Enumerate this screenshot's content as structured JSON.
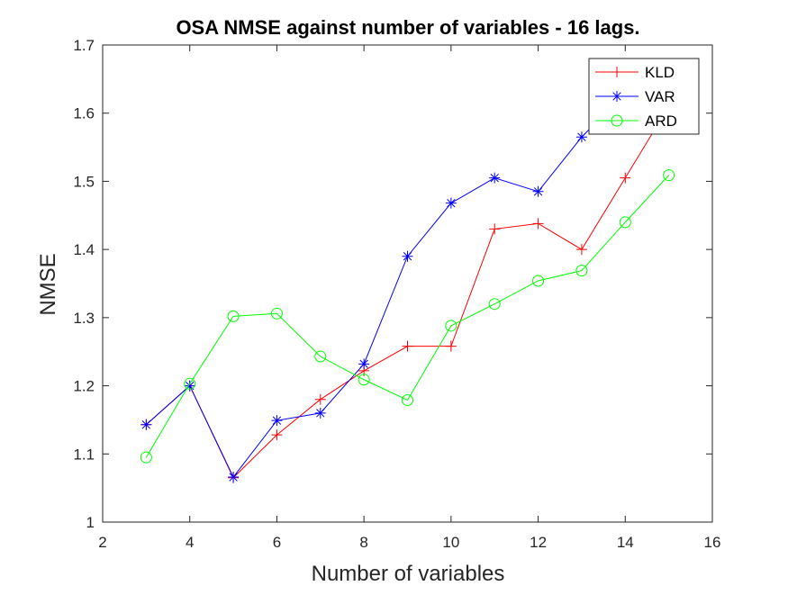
{
  "chart_data": {
    "type": "line",
    "title": "OSA NMSE against number of variables - 16 lags.",
    "xlabel": "Number of variables",
    "ylabel": "NMSE",
    "xlim": [
      2,
      16
    ],
    "ylim": [
      1,
      1.7
    ],
    "xticks": [
      2,
      4,
      6,
      8,
      10,
      12,
      14,
      16
    ],
    "yticks": [
      1,
      1.1,
      1.2,
      1.3,
      1.4,
      1.5,
      1.6,
      1.7
    ],
    "xtick_labels": [
      "2",
      "4",
      "6",
      "8",
      "10",
      "12",
      "14",
      "16"
    ],
    "ytick_labels": [
      "1",
      "1.1",
      "1.2",
      "1.3",
      "1.4",
      "1.5",
      "1.6",
      "1.7"
    ],
    "grid": false,
    "legend_position": "top-right",
    "series": [
      {
        "name": "KLD",
        "color": "#ff0000",
        "marker": "plus",
        "x": [
          3,
          4,
          5,
          6,
          7,
          8,
          9,
          10,
          11,
          12,
          13,
          14,
          15
        ],
        "y": [
          1.143,
          1.2,
          1.065,
          1.128,
          1.18,
          1.222,
          1.258,
          1.258,
          1.43,
          1.438,
          1.4,
          1.505,
          1.61
        ]
      },
      {
        "name": "VAR",
        "color": "#0000ff",
        "marker": "asterisk",
        "x": [
          3,
          4,
          5,
          6,
          7,
          8,
          9,
          10,
          11,
          12,
          13,
          14,
          15
        ],
        "y": [
          1.143,
          1.2,
          1.066,
          1.149,
          1.16,
          1.232,
          1.39,
          1.468,
          1.505,
          1.485,
          1.565,
          1.63,
          1.66
        ]
      },
      {
        "name": "ARD",
        "color": "#00ff00",
        "marker": "circle",
        "x": [
          3,
          4,
          5,
          6,
          7,
          8,
          9,
          10,
          11,
          12,
          13,
          14,
          15
        ],
        "y": [
          1.095,
          1.203,
          1.302,
          1.306,
          1.243,
          1.209,
          1.179,
          1.288,
          1.32,
          1.354,
          1.369,
          1.44,
          1.509
        ]
      }
    ]
  }
}
